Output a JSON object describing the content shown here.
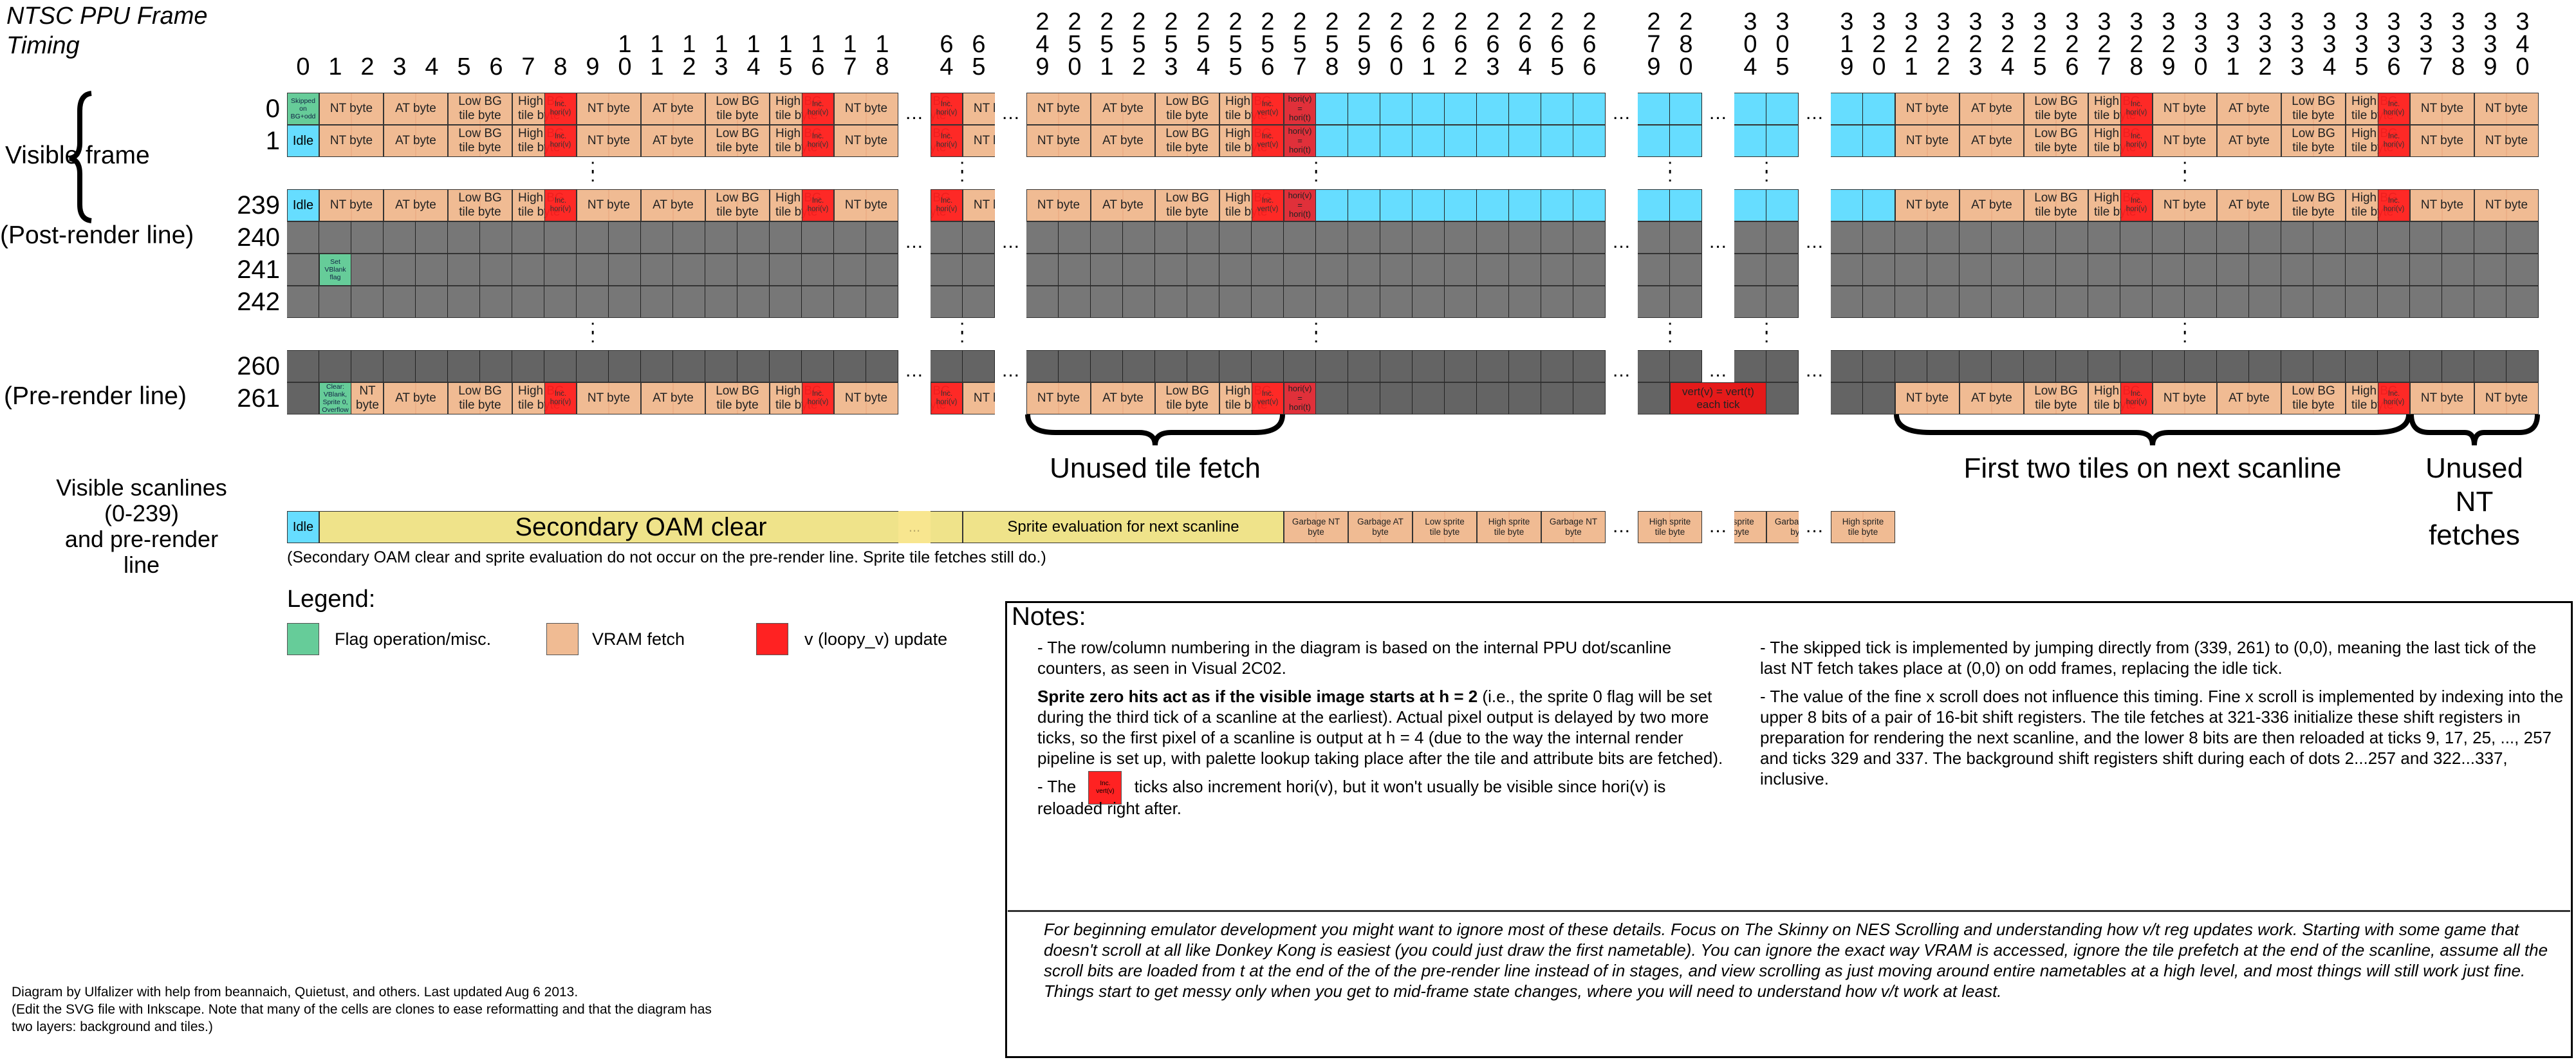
{
  "title": "NTSC PPU Frame Timing",
  "colors": {
    "vram_fetch": "#F0BB93",
    "flag": "#66CC99",
    "v_update": "#FF2222",
    "idle": "#66DDFF",
    "gray": "#777777",
    "sprite_eval": "#EFE38A"
  },
  "grid": {
    "column_groups": [
      [
        0,
        1,
        2,
        3,
        4,
        5,
        6,
        7,
        8,
        9,
        10,
        11,
        12,
        13,
        14,
        15,
        16,
        17,
        18
      ],
      [
        64,
        65
      ],
      [
        249,
        250,
        251,
        252,
        253,
        254,
        255,
        256,
        257,
        258,
        259,
        260,
        261,
        262,
        263,
        264,
        265,
        266
      ],
      [
        279,
        280
      ],
      [
        304,
        305
      ],
      [
        319,
        320,
        321,
        322,
        323,
        324,
        325,
        326,
        327,
        328,
        329,
        330,
        331,
        332,
        333,
        334,
        335,
        336,
        337,
        338,
        339,
        340
      ]
    ],
    "labels": {
      "nt": "NT byte",
      "at": "AT byte",
      "low": "Low BG\ntile byte",
      "high": "High BG\ntile byte",
      "inc_h": "Inc.\nhori(v)",
      "inc_v": "Inc.\nvert(v)",
      "copy_h": "hori(v)\n=\nhori(t)",
      "idle": "Idle"
    },
    "render_blocks": [
      {
        "from": 1,
        "span": 2,
        "t": "nt"
      },
      {
        "from": 3,
        "span": 2,
        "t": "at"
      },
      {
        "from": 5,
        "span": 2,
        "t": "low"
      },
      {
        "from": 7,
        "span": 2,
        "t": "high"
      },
      {
        "from": 8,
        "span": 1,
        "t": "inc_h"
      },
      {
        "from": 9,
        "span": 2,
        "t": "nt"
      },
      {
        "from": 11,
        "span": 2,
        "t": "at"
      },
      {
        "from": 13,
        "span": 2,
        "t": "low"
      },
      {
        "from": 15,
        "span": 2,
        "t": "high"
      },
      {
        "from": 16,
        "span": 1,
        "t": "inc_h"
      },
      {
        "from": 17,
        "span": 2,
        "t": "nt"
      },
      {
        "from": 63,
        "span": 2,
        "t": "high"
      },
      {
        "from": 64,
        "span": 1,
        "t": "inc_h"
      },
      {
        "from": 65,
        "span": 2,
        "t": "nt"
      },
      {
        "from": 249,
        "span": 2,
        "t": "nt"
      },
      {
        "from": 251,
        "span": 2,
        "t": "at"
      },
      {
        "from": 253,
        "span": 2,
        "t": "low"
      },
      {
        "from": 255,
        "span": 2,
        "t": "high"
      },
      {
        "from": 256,
        "span": 1,
        "t": "inc_v"
      },
      {
        "from": 257,
        "span": 1,
        "t": "copy_h"
      },
      {
        "from": 321,
        "span": 2,
        "t": "nt"
      },
      {
        "from": 323,
        "span": 2,
        "t": "at"
      },
      {
        "from": 325,
        "span": 2,
        "t": "low"
      },
      {
        "from": 327,
        "span": 2,
        "t": "high"
      },
      {
        "from": 328,
        "span": 1,
        "t": "inc_h"
      },
      {
        "from": 329,
        "span": 2,
        "t": "nt"
      },
      {
        "from": 331,
        "span": 2,
        "t": "at"
      },
      {
        "from": 333,
        "span": 2,
        "t": "low"
      },
      {
        "from": 335,
        "span": 2,
        "t": "high"
      },
      {
        "from": 336,
        "span": 1,
        "t": "inc_h"
      },
      {
        "from": 337,
        "span": 2,
        "t": "nt"
      },
      {
        "from": 339,
        "span": 2,
        "t": "nt"
      }
    ],
    "rows": [
      {
        "n": "0",
        "kind": "render",
        "blocks": [
          {
            "from": 0,
            "span": 1,
            "t": "flag",
            "label": "Skipped\non\nBG+odd"
          }
        ]
      },
      {
        "n": "1",
        "kind": "render",
        "blocks": [
          {
            "from": 0,
            "span": 1,
            "t": "idle"
          }
        ]
      },
      {
        "n": "239",
        "kind": "render",
        "blocks": [
          {
            "from": 0,
            "span": 1,
            "t": "idle"
          }
        ]
      },
      {
        "n": "240",
        "kind": "gray",
        "blocks": []
      },
      {
        "n": "241",
        "kind": "gray",
        "blocks": [
          {
            "from": 1,
            "span": 1,
            "t": "flag",
            "label": "Set\nVBlank\nflag"
          }
        ]
      },
      {
        "n": "242",
        "kind": "gray",
        "blocks": []
      },
      {
        "n": "260",
        "kind": "dark",
        "blocks": []
      },
      {
        "n": "261",
        "kind": "prerender",
        "blocks": [
          {
            "from": 1,
            "span": 1,
            "t": "flag",
            "label": "Clear:\nVBlank,\nSprite 0,\nOverflow"
          },
          {
            "from": 280,
            "span": 25,
            "t": "vert",
            "label": "vert(v) = vert(t)\neach tick"
          }
        ]
      }
    ]
  },
  "side_labels": {
    "visible_frame": "Visible frame",
    "post_render": "(Post-render line)",
    "pre_render": "(Pre-render line)"
  },
  "braces": {
    "unused_tile_fetch": "Unused tile fetch",
    "first_two_tiles": "First two tiles on next scanline",
    "unused_nt": "Unused NT\nfetches"
  },
  "sprite": {
    "label": "Visible scanlines\n(0-239)\nand pre-render\nline",
    "blocks": [
      {
        "from": 0,
        "span": 1,
        "t": "idle",
        "label": "Idle"
      },
      {
        "from": 1,
        "span": 64,
        "t": "oam",
        "label": "Secondary OAM clear"
      },
      {
        "from": 65,
        "span": 192,
        "t": "eval",
        "label": "Sprite evaluation for next scanline"
      },
      {
        "from": 257,
        "span": 2,
        "t": "fetch",
        "label": "Garbage NT\nbyte"
      },
      {
        "from": 259,
        "span": 2,
        "t": "fetch",
        "label": "Garbage AT\nbyte"
      },
      {
        "from": 261,
        "span": 2,
        "t": "fetch",
        "label": "Low sprite\ntile byte"
      },
      {
        "from": 263,
        "span": 2,
        "t": "fetch",
        "label": "High sprite\ntile byte"
      },
      {
        "from": 265,
        "span": 2,
        "t": "fetch",
        "label": "Garbage NT\nbyte"
      },
      {
        "from": 279,
        "span": 2,
        "t": "fetch",
        "label": "High sprite\ntile byte"
      },
      {
        "from": 303,
        "span": 2,
        "t": "fetch",
        "label": "Low sprite\ntile byte"
      },
      {
        "from": 305,
        "span": 2,
        "t": "fetch",
        "label": "Garbage NT\nbyte"
      },
      {
        "from": 319,
        "span": 2,
        "t": "fetch",
        "label": "High sprite\ntile byte"
      }
    ],
    "note": "(Secondary OAM clear and sprite evaluation do not occur on the pre-render line. Sprite tile fetches still do.)"
  },
  "legend": {
    "title": "Legend:",
    "items": [
      {
        "label": "Flag operation/misc.",
        "color": "#66CC99"
      },
      {
        "label": "VRAM fetch",
        "color": "#F0BB93"
      },
      {
        "label": "v (loopy_v) update",
        "color": "#FF2222"
      }
    ]
  },
  "notes": {
    "title": "Notes:",
    "p1": "- The row/column numbering in the diagram is based on the internal PPU dot/scanline counters, as seen in Visual 2C02.",
    "p2_bold": "Sprite zero hits act as if the visible image starts at h = 2",
    "p2_rest": " (i.e., the sprite 0 flag will be set during the third tick of a scanline at the earliest). Actual pixel output is delayed by two more ticks, so the first pixel of a scanline is output at h = 4 (due to the way the internal render pipeline is set up, with palette lookup taking place after the tile and attribute bits are fetched).",
    "p3_pre": "- The",
    "p3_icon": "Inc.\nvert(v)",
    "p3_post": "ticks also increment hori(v), but it won't usually be visible since hori(v) is reloaded right after.",
    "r1": "- The skipped tick is implemented by jumping directly from (339, 261) to (0,0), meaning the last tick of  the last NT fetch takes place at (0,0) on odd frames, replacing the idle tick.",
    "r2": "- The value of the fine x scroll does not influence this timing. Fine x scroll is implemented by indexing into the upper 8 bits of a pair of 16-bit shift registers. The tile fetches at 321-336 initialize these shift registers in preparation for rendering the next scanline, and the lower 8 bits are then reloaded at ticks 9, 17, 25, ..., 257 and ticks 329 and 337. The background shift registers shift during each of dots 2...257 and 322...337, inclusive.",
    "beginner": "For beginning emulator development you might want to ignore most of these details. Focus on The Skinny on NES Scrolling and understanding how v/t reg updates work. Starting with some game that doesn't scroll at all like Donkey Kong is easiest (you could just draw the first nametable). You can ignore the exact way VRAM is accessed, ignore the tile prefetch at the end of the scanline, assume all the scroll bits are loaded from t at the end of the of the pre-render line instead of in stages, and view scrolling as just moving around entire nametables at a high level, and most things will still work just fine. Things start to get messy only when you get to mid-frame state changes, where you will need to understand how v/t work at least."
  },
  "credit": "Diagram by Ulfalizer with help from beannaich, Quietust, and others. Last updated Aug 6 2013.\n(Edit the SVG file with Inkscape. Note that many of the cells are clones to ease reformatting and that the diagram has two layers: background and tiles.)",
  "ellipsis": "...",
  "vellipsis": ":"
}
